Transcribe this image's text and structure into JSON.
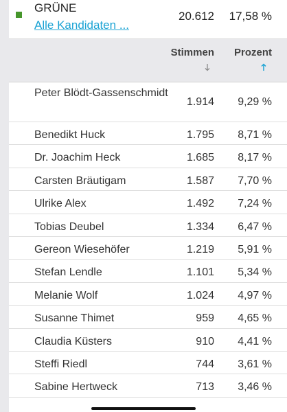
{
  "party": {
    "name": "GRÜNE",
    "link_label": "Alle Kandidaten ...",
    "votes": "20.612",
    "percent": "17,58 %",
    "color": "#46962b"
  },
  "table_header": {
    "votes_label": "Stimmen",
    "percent_label": "Prozent",
    "votes_sort_icon": "arrow-down-icon",
    "percent_sort_icon": "arrow-up-icon",
    "active_sort_color": "#1ba3d4"
  },
  "candidates": [
    {
      "name": "Peter Blödt-Gassenschmidt",
      "votes": "1.914",
      "percent": "9,29 %"
    },
    {
      "name": "Benedikt Huck",
      "votes": "1.795",
      "percent": "8,71 %"
    },
    {
      "name": "Dr. Joachim Heck",
      "votes": "1.685",
      "percent": "8,17 %"
    },
    {
      "name": "Carsten Bräutigam",
      "votes": "1.587",
      "percent": "7,70 %"
    },
    {
      "name": "Ulrike Alex",
      "votes": "1.492",
      "percent": "7,24 %"
    },
    {
      "name": "Tobias Deubel",
      "votes": "1.334",
      "percent": "6,47 %"
    },
    {
      "name": "Gereon Wiesehöfer",
      "votes": "1.219",
      "percent": "5,91 %"
    },
    {
      "name": "Stefan Lendle",
      "votes": "1.101",
      "percent": "5,34 %"
    },
    {
      "name": "Melanie Wolf",
      "votes": "1.024",
      "percent": "4,97 %"
    },
    {
      "name": "Susanne Thimet",
      "votes": "959",
      "percent": "4,65 %"
    },
    {
      "name": "Claudia Küsters",
      "votes": "910",
      "percent": "4,41 %"
    },
    {
      "name": "Steffi Riedl",
      "votes": "744",
      "percent": "3,61 %"
    },
    {
      "name": "Sabine Hertweck",
      "votes": "713",
      "percent": "3,46 %"
    }
  ]
}
